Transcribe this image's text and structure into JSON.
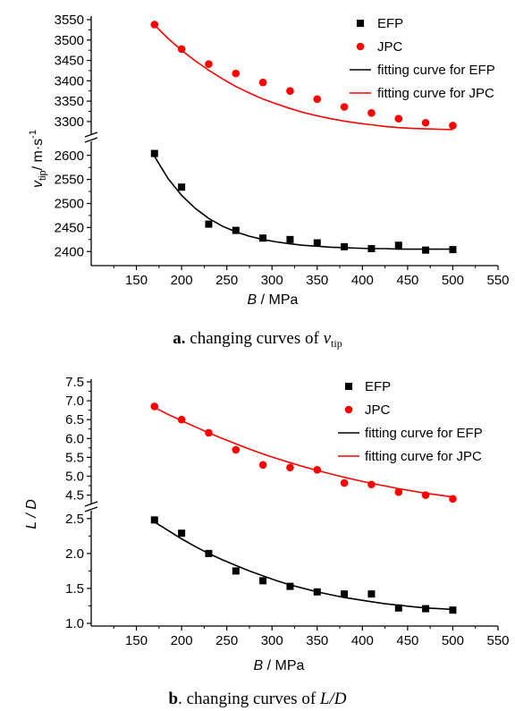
{
  "charts": [
    {
      "id": "a",
      "caption_prefix": "a.",
      "caption_text": "changing curves of",
      "caption_var": "v",
      "caption_sub": "tip",
      "ylabel_var": "v",
      "ylabel_sub": "tip",
      "ylabel_unit": "/ m·s",
      "ylabel_exp": "-1",
      "xlabel_var": "B",
      "xlabel_unit": " / MPa"
    },
    {
      "id": "b",
      "caption_prefix": "b",
      "caption_text": ". changing curves of",
      "caption_var": "L/D",
      "ylabel_text": "L / D",
      "xlabel_var": "B",
      "xlabel_unit": " / MPa"
    }
  ],
  "chart_data": [
    {
      "type": "scatter",
      "xlim": [
        100,
        550
      ],
      "xticks": [
        150,
        200,
        250,
        300,
        350,
        400,
        450,
        500,
        550
      ],
      "broken_y_axis": true,
      "upper_ylim": [
        3280,
        3550
      ],
      "upper_yticks": [
        3300,
        3350,
        3400,
        3450,
        3500,
        3550
      ],
      "lower_ylim": [
        2380,
        2620
      ],
      "lower_yticks": [
        2400,
        2450,
        2500,
        2550,
        2600
      ],
      "series": [
        {
          "name": "EFP",
          "marker": "square",
          "color": "#000000",
          "x": [
            170,
            200,
            230,
            260,
            290,
            320,
            350,
            380,
            410,
            440,
            470,
            500
          ],
          "y": [
            2604,
            2534,
            2457,
            2444,
            2428,
            2425,
            2418,
            2410,
            2406,
            2413,
            2403,
            2404
          ]
        },
        {
          "name": "JPC",
          "marker": "circle",
          "color": "#ff0000",
          "x": [
            170,
            200,
            230,
            260,
            290,
            320,
            350,
            380,
            410,
            440,
            470,
            500
          ],
          "y": [
            3538,
            3478,
            3441,
            3418,
            3396,
            3375,
            3355,
            3336,
            3321,
            3307,
            3297,
            3290
          ]
        },
        {
          "name": "fitting curve for EFP",
          "type": "line",
          "color": "#000000",
          "x": [
            170,
            185,
            200,
            215,
            230,
            245,
            260,
            275,
            290,
            305,
            320,
            335,
            350,
            365,
            380,
            395,
            410,
            425,
            440,
            455,
            470,
            485,
            500
          ],
          "y": [
            2598,
            2552,
            2517,
            2490,
            2469,
            2453,
            2441,
            2432,
            2425,
            2420,
            2416,
            2413,
            2411,
            2409,
            2408,
            2407,
            2406,
            2406,
            2405,
            2405,
            2405,
            2405,
            2405
          ]
        },
        {
          "name": "fitting curve for JPC",
          "type": "line",
          "color": "#ff0000",
          "x": [
            170,
            185,
            200,
            215,
            230,
            245,
            260,
            275,
            290,
            305,
            320,
            335,
            350,
            365,
            380,
            395,
            410,
            425,
            440,
            455,
            470,
            485,
            500
          ],
          "y": [
            3537,
            3504,
            3475,
            3449,
            3426,
            3405,
            3386,
            3370,
            3355,
            3343,
            3332,
            3322,
            3314,
            3307,
            3301,
            3296,
            3292,
            3288,
            3285,
            3283,
            3282,
            3281,
            3280
          ]
        }
      ],
      "legend": [
        {
          "label": "EFP",
          "symbol": "square",
          "color": "#000000"
        },
        {
          "label": "JPC",
          "symbol": "circle",
          "color": "#ff0000"
        },
        {
          "label": "fitting curve for EFP",
          "symbol": "line",
          "color": "#000000"
        },
        {
          "label": "fitting curve for JPC",
          "symbol": "line",
          "color": "#ff0000"
        }
      ],
      "legend_position": "top-right",
      "grid": false
    },
    {
      "type": "scatter",
      "xlim": [
        100,
        550
      ],
      "xticks": [
        150,
        200,
        250,
        300,
        350,
        400,
        450,
        500,
        550
      ],
      "broken_y_axis": true,
      "upper_ylim": [
        4.3,
        7.5
      ],
      "upper_yticks": [
        4.5,
        5.0,
        5.5,
        6.0,
        6.5,
        7.0,
        7.5
      ],
      "lower_ylim": [
        1.0,
        2.6
      ],
      "lower_yticks": [
        1.0,
        1.5,
        2.0,
        2.5
      ],
      "series": [
        {
          "name": "EFP",
          "marker": "square",
          "color": "#000000",
          "x": [
            170,
            200,
            230,
            260,
            290,
            320,
            350,
            380,
            410,
            440,
            470,
            500
          ],
          "y": [
            2.48,
            2.29,
            2.0,
            1.75,
            1.61,
            1.53,
            1.45,
            1.42,
            1.42,
            1.22,
            1.21,
            1.19
          ]
        },
        {
          "name": "JPC",
          "marker": "circle",
          "color": "#ff0000",
          "x": [
            170,
            200,
            230,
            260,
            290,
            320,
            350,
            380,
            410,
            440,
            470,
            500
          ],
          "y": [
            6.85,
            6.5,
            6.15,
            5.7,
            5.3,
            5.23,
            5.17,
            4.82,
            4.78,
            4.58,
            4.5,
            4.4
          ]
        },
        {
          "name": "fitting curve for EFP",
          "type": "line",
          "color": "#000000",
          "x": [
            170,
            185,
            200,
            215,
            230,
            245,
            260,
            275,
            290,
            305,
            320,
            335,
            350,
            365,
            380,
            395,
            410,
            425,
            440,
            455,
            470,
            485,
            500
          ],
          "y": [
            2.45,
            2.33,
            2.21,
            2.1,
            2.0,
            1.91,
            1.83,
            1.75,
            1.68,
            1.61,
            1.55,
            1.5,
            1.45,
            1.41,
            1.37,
            1.34,
            1.31,
            1.28,
            1.26,
            1.24,
            1.22,
            1.21,
            1.2
          ]
        },
        {
          "name": "fitting curve for JPC",
          "type": "line",
          "color": "#ff0000",
          "x": [
            170,
            185,
            200,
            215,
            230,
            245,
            260,
            275,
            290,
            305,
            320,
            335,
            350,
            365,
            380,
            395,
            410,
            425,
            440,
            455,
            470,
            485,
            500
          ],
          "y": [
            6.82,
            6.64,
            6.47,
            6.31,
            6.15,
            6.0,
            5.86,
            5.72,
            5.59,
            5.47,
            5.36,
            5.25,
            5.15,
            5.06,
            4.97,
            4.89,
            4.81,
            4.74,
            4.67,
            4.61,
            4.55,
            4.5,
            4.45
          ]
        }
      ],
      "legend": [
        {
          "label": "EFP",
          "symbol": "square",
          "color": "#000000"
        },
        {
          "label": "JPC",
          "symbol": "circle",
          "color": "#ff0000"
        },
        {
          "label": "fitting curve for EFP",
          "symbol": "line",
          "color": "#000000"
        },
        {
          "label": "fitting curve for JPC",
          "symbol": "line",
          "color": "#ff0000"
        }
      ],
      "legend_position": "top-right",
      "grid": false
    }
  ]
}
